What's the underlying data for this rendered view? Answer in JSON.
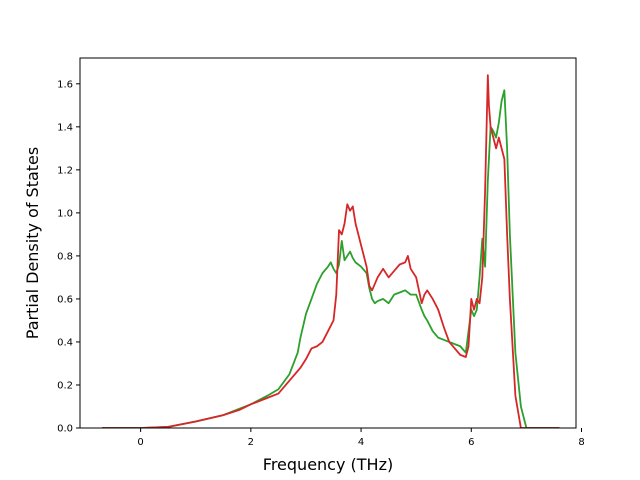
{
  "chart_data": {
    "type": "line",
    "title": "",
    "xlabel": "Frequency (THz)",
    "ylabel": "Partial Density of States",
    "xlim": [
      -1.1,
      7.9
    ],
    "ylim": [
      0.0,
      1.72
    ],
    "xticks": [
      0,
      2,
      4,
      6,
      8
    ],
    "yticks": [
      0.0,
      0.2,
      0.4,
      0.6,
      0.8,
      1.0,
      1.2,
      1.4,
      1.6
    ],
    "xtick_labels": [
      "0",
      "2",
      "4",
      "6",
      "8"
    ],
    "ytick_labels": [
      "0.0",
      "0.2",
      "0.4",
      "0.6",
      "0.8",
      "1.0",
      "1.2",
      "1.4",
      "1.6"
    ],
    "grid": false,
    "series": [
      {
        "color": "#2ca02c",
        "x": [
          -0.7,
          0.0,
          0.5,
          1.0,
          1.5,
          1.8,
          2.0,
          2.3,
          2.5,
          2.7,
          2.85,
          2.9,
          3.0,
          3.1,
          3.2,
          3.3,
          3.4,
          3.45,
          3.5,
          3.55,
          3.6,
          3.65,
          3.7,
          3.75,
          3.8,
          3.85,
          3.9,
          4.0,
          4.1,
          4.15,
          4.2,
          4.25,
          4.3,
          4.4,
          4.5,
          4.6,
          4.7,
          4.8,
          4.9,
          5.0,
          5.1,
          5.15,
          5.2,
          5.3,
          5.4,
          5.5,
          5.6,
          5.7,
          5.8,
          5.9,
          5.95,
          6.0,
          6.05,
          6.1,
          6.15,
          6.2,
          6.25,
          6.3,
          6.35,
          6.4,
          6.45,
          6.5,
          6.55,
          6.6,
          6.65,
          6.7,
          6.8,
          6.9,
          7.0,
          7.6
        ],
        "y": [
          0.0,
          0.0,
          0.005,
          0.03,
          0.06,
          0.09,
          0.11,
          0.15,
          0.18,
          0.25,
          0.35,
          0.42,
          0.53,
          0.6,
          0.67,
          0.72,
          0.75,
          0.77,
          0.74,
          0.72,
          0.76,
          0.87,
          0.78,
          0.8,
          0.82,
          0.79,
          0.77,
          0.75,
          0.72,
          0.65,
          0.6,
          0.58,
          0.59,
          0.6,
          0.58,
          0.62,
          0.63,
          0.64,
          0.62,
          0.62,
          0.55,
          0.52,
          0.5,
          0.45,
          0.42,
          0.41,
          0.4,
          0.39,
          0.38,
          0.35,
          0.45,
          0.55,
          0.52,
          0.55,
          0.7,
          0.88,
          0.75,
          1.15,
          1.4,
          1.38,
          1.35,
          1.42,
          1.52,
          1.57,
          1.3,
          0.9,
          0.35,
          0.1,
          0.0,
          0.0
        ]
      },
      {
        "color": "#d62728",
        "x": [
          -0.7,
          0.0,
          0.5,
          1.0,
          1.5,
          1.8,
          2.0,
          2.3,
          2.5,
          2.7,
          2.9,
          3.0,
          3.1,
          3.2,
          3.3,
          3.4,
          3.5,
          3.55,
          3.6,
          3.65,
          3.7,
          3.75,
          3.8,
          3.85,
          3.9,
          4.0,
          4.1,
          4.15,
          4.2,
          4.3,
          4.4,
          4.5,
          4.6,
          4.7,
          4.8,
          4.85,
          4.9,
          5.0,
          5.1,
          5.15,
          5.2,
          5.3,
          5.4,
          5.5,
          5.6,
          5.7,
          5.8,
          5.9,
          5.95,
          6.0,
          6.05,
          6.1,
          6.15,
          6.2,
          6.25,
          6.3,
          6.32,
          6.35,
          6.4,
          6.45,
          6.5,
          6.55,
          6.6,
          6.65,
          6.7,
          6.8,
          6.9,
          7.0,
          7.6
        ],
        "y": [
          0.0,
          0.0,
          0.005,
          0.03,
          0.06,
          0.085,
          0.11,
          0.14,
          0.16,
          0.22,
          0.28,
          0.32,
          0.37,
          0.38,
          0.4,
          0.45,
          0.5,
          0.62,
          0.92,
          0.9,
          0.95,
          1.04,
          1.01,
          1.03,
          0.95,
          0.85,
          0.75,
          0.66,
          0.64,
          0.7,
          0.74,
          0.7,
          0.73,
          0.76,
          0.77,
          0.8,
          0.74,
          0.7,
          0.58,
          0.62,
          0.64,
          0.6,
          0.55,
          0.47,
          0.4,
          0.37,
          0.34,
          0.33,
          0.38,
          0.6,
          0.55,
          0.6,
          0.58,
          0.7,
          1.1,
          1.64,
          1.5,
          1.4,
          1.35,
          1.3,
          1.35,
          1.3,
          1.25,
          0.9,
          0.6,
          0.15,
          0.0,
          0.0,
          0.0
        ]
      }
    ]
  }
}
